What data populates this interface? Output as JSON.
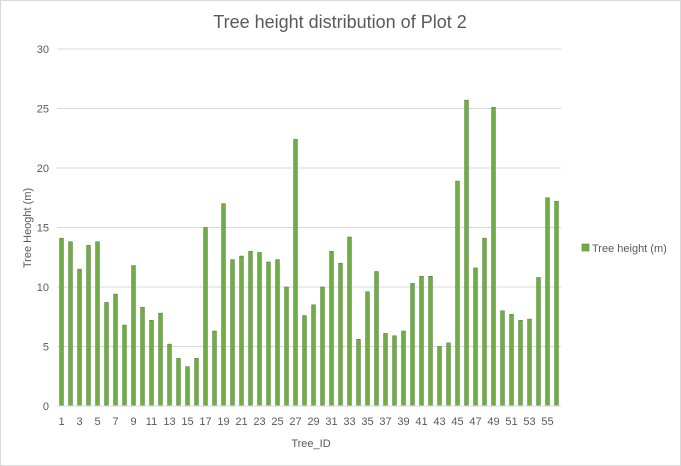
{
  "chart_data": {
    "type": "bar",
    "title": "Tree height distribution of Plot 2",
    "xlabel": "Tree_ID",
    "ylabel": "Tree Heoght (m)",
    "ylim": [
      0,
      30
    ],
    "yticks": [
      0,
      5,
      10,
      15,
      20,
      25,
      30
    ],
    "grid": true,
    "legend_position": "right",
    "categories": [
      1,
      2,
      3,
      4,
      5,
      6,
      7,
      8,
      9,
      10,
      11,
      12,
      13,
      14,
      15,
      16,
      17,
      18,
      19,
      20,
      21,
      22,
      23,
      24,
      25,
      26,
      27,
      28,
      29,
      30,
      31,
      32,
      33,
      34,
      35,
      36,
      37,
      38,
      39,
      40,
      41,
      42,
      43,
      44,
      45,
      46,
      47,
      48,
      49,
      50,
      51,
      52,
      53,
      54,
      55,
      56
    ],
    "x_tick_labels": [
      "1",
      "3",
      "5",
      "7",
      "9",
      "11",
      "13",
      "15",
      "17",
      "19",
      "21",
      "23",
      "25",
      "27",
      "29",
      "31",
      "33",
      "35",
      "37",
      "39",
      "41",
      "43",
      "45",
      "47",
      "49",
      "51",
      "53",
      "55"
    ],
    "series": [
      {
        "name": "Tree height (m)",
        "color": "#70ad47",
        "edge_color": "#548235",
        "values": [
          14.1,
          13.8,
          11.5,
          13.5,
          13.8,
          8.7,
          9.4,
          6.8,
          11.8,
          8.3,
          7.2,
          7.8,
          5.2,
          4.0,
          3.3,
          4.0,
          15.0,
          6.3,
          17.0,
          12.3,
          12.6,
          13.0,
          12.9,
          12.1,
          12.3,
          10.0,
          22.4,
          7.6,
          8.5,
          10.0,
          13.0,
          12.0,
          14.2,
          5.6,
          9.6,
          11.3,
          6.1,
          5.9,
          6.3,
          10.3,
          10.9,
          10.9,
          5.0,
          5.3,
          18.9,
          25.7,
          11.6,
          14.1,
          25.1,
          8.0,
          7.7,
          7.2,
          7.3,
          10.8,
          17.5,
          17.2
        ]
      }
    ]
  }
}
